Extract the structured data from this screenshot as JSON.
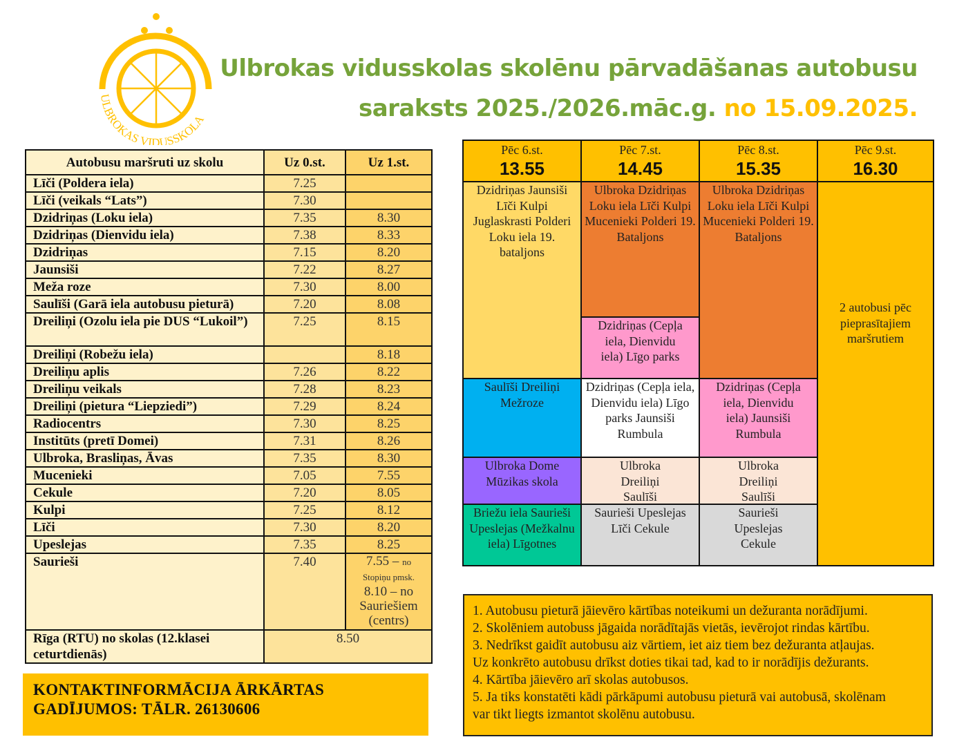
{
  "logo": {
    "text": "ULBROKAS VIDUSSKOLA",
    "color": "#ffc000"
  },
  "title": {
    "line1": "Ulbrokas vidusskolas skolēnu pārvadāšanas autobusu",
    "line2": "saraksts 2025./2026.māc.g.",
    "date": "no 15.09.2025."
  },
  "morning": {
    "headers": [
      "Autobusu maršruti uz skolu",
      "Uz 0.st.",
      "Uz 1.st."
    ],
    "rows": [
      {
        "route": "Līči (Poldera iela)",
        "t0": "7.25",
        "t1": ""
      },
      {
        "route": "Līči (veikals “Lats”)",
        "t0": "7.30",
        "t1": ""
      },
      {
        "route": "Dzidriņas (Loku iela)",
        "t0": "7.35",
        "t1": "8.30"
      },
      {
        "route": "Dzidriņas (Dienvidu  iela)",
        "t0": "7.38",
        "t1": "8.33"
      },
      {
        "route": "Dzidriņas",
        "t0": "7.15",
        "t1": "8.20"
      },
      {
        "route": "Jaunsiši",
        "t0": "7.22",
        "t1": "8.27"
      },
      {
        "route": "Meža roze",
        "t0": "7.30",
        "t1": "8.00"
      },
      {
        "route": "Saulīši (Garā iela autobusu pieturā)",
        "t0": "7.20",
        "t1": "8.08"
      },
      {
        "route": "Dreiliņi (Ozolu iela pie DUS “Lukoil”)",
        "t0": "7.25",
        "t1": "8.15"
      },
      {
        "route": "Dreiliņi (Robežu iela)",
        "t0": "",
        "t1": "8.18"
      },
      {
        "route": "Dreiliņu aplis",
        "t0": "7.26",
        "t1": "8.22"
      },
      {
        "route": "Dreiliņu veikals",
        "t0": "7.28",
        "t1": "8.23"
      },
      {
        "route": "Dreiliņi (pietura “Liepziedi”)",
        "t0": "7.29",
        "t1": "8.24"
      },
      {
        "route": "Radiocentrs",
        "t0": "7.30",
        "t1": "8.25"
      },
      {
        "route": "Institūts (pretī Domei)",
        "t0": "7.31",
        "t1": "8.26"
      },
      {
        "route": "Ulbroka, Brasliņas, Āvas",
        "t0": "7.35",
        "t1": "8.30"
      },
      {
        "route": "Mucenieki",
        "t0": "7.05",
        "t1": "7.55"
      },
      {
        "route": "Cekule",
        "t0": "7.20",
        "t1": "8.05"
      },
      {
        "route": "Kulpi",
        "t0": "7.25",
        "t1": "8.12"
      },
      {
        "route": "Līči",
        "t0": "7.30",
        "t1": "8.20"
      },
      {
        "route": "Upeslejas",
        "t0": "7.35",
        "t1": "8.25"
      }
    ],
    "saurieši": {
      "route": "Saurieši",
      "t0": "7.40",
      "t1a": "7.55 – ",
      "t1a_note": "no Stopiņu pmsk.",
      "t1b": "8.10 – no Sauriešiem (centrs)"
    },
    "riga": {
      "route": "Rīga (RTU) no skolas (12.klasei ceturtdienās)",
      "time": "8.50"
    }
  },
  "contact": "KONTAKTINFORMĀCIJA ĀRKĀRTAS GADĪJUMOS: TĀLR. 26130606",
  "afternoon": {
    "columns": [
      {
        "label": "Pēc 6.st.",
        "time": "13.55"
      },
      {
        "label": "Pēc 7.st.",
        "time": "14.45"
      },
      {
        "label": "Pēc 8.st.",
        "time": "15.35"
      },
      {
        "label": "Pēc 9.st.",
        "time": "16.30"
      }
    ],
    "col1": [
      "Dzidriņas Jaunsiši Līči Kulpi Juglaskrasti Polderi Loku iela 19. bataljons",
      "Saulīši Dreiliņi Mežroze",
      "Ulbroka Dome Mūzikas skola",
      "Briežu iela Saurieši Upeslejas (Mežkalnu iela) Līgotnes"
    ],
    "col2": [
      "Ulbroka Dzidriņas Loku iela Līči Kulpi Mucenieki Polderi 19. Bataljons",
      "Dzidriņas (Cepļa iela, Dienvidu iela) Līgo parks",
      "Dzidriņas (Cepļa iela, Dienvidu iela) Līgo parks Jaunsiši Rumbula",
      "Ulbroka Dreiliņi Saulīši",
      "Saurieši Upeslejas Līči Cekule"
    ],
    "col3": [
      "Ulbroka Dzidriņas Loku iela Līči Kulpi Mucenieki Polderi 19. Bataljons",
      "Dzidriņas (Cepļa iela, Dienvidu iela) Jaunsiši Rumbula",
      "Ulbroka Dreiliņi Saulīši",
      "Saurieši Upeslejas Cekule"
    ],
    "col4": "2 autobusi pēc pieprasītajiem maršrutiem",
    "colors": {
      "header": "#ffc000",
      "light_yellow": "#ffd966",
      "orange": "#ed7d31",
      "pink": "#ff99cc",
      "blue": "#00b0f0",
      "purple": "#9966ff",
      "green": "#00c896",
      "peach": "#fbe5d6",
      "gray": "#d9d9d9",
      "white": "#ffffff"
    }
  },
  "notes": [
    "1. Autobusu pieturā jāievēro kārtības noteikumi un dežuranta norādījumi.",
    "2. Skolēniem autobuss jāgaida norādītajās vietās, ievērojot rindas kārtību.",
    "3. Nedrīkst gaidīt autobusu aiz vārtiem, iet aiz tiem bez dežuranta atļaujas.",
    "Uz konkrēto autobusu drīkst doties tikai tad, kad to ir norādījis dežurants.",
    "4. Kārtība jāievēro arī skolas autobusos.",
    "5. Ja tiks konstatēti kādi pārkāpumi autobusu pieturā vai autobusā, skolēnam",
    "var tikt liegts izmantot skolēnu autobusu."
  ]
}
